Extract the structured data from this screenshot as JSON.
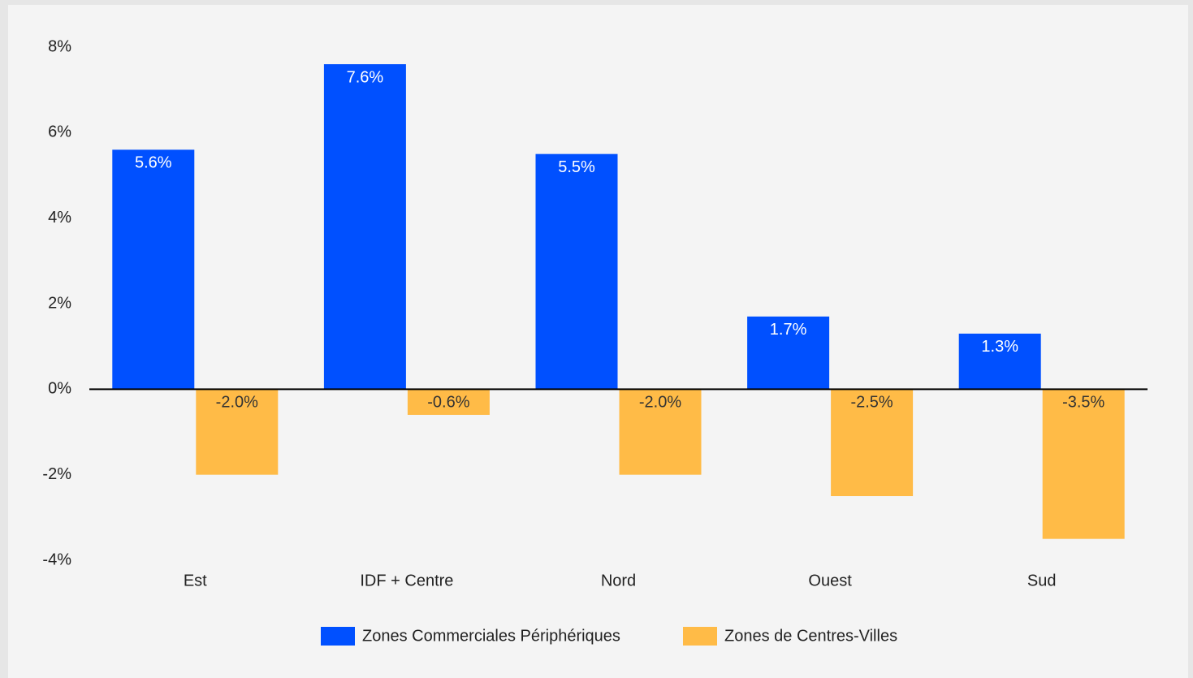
{
  "chart_data": {
    "type": "bar",
    "categories": [
      "Est",
      "IDF + Centre",
      "Nord",
      "Ouest",
      "Sud"
    ],
    "series": [
      {
        "name": "Zones Commerciales Périphériques",
        "color": "#0050ff",
        "values": [
          5.6,
          7.6,
          5.5,
          1.7,
          1.3
        ],
        "value_labels": [
          "5.6%",
          "7.6%",
          "5.5%",
          "1.7%",
          "1.3%"
        ]
      },
      {
        "name": "Zones de Centres-Villes",
        "color": "#ffbb47",
        "values": [
          -2.0,
          -0.6,
          -2.0,
          -2.5,
          -3.5
        ],
        "value_labels": [
          "-2.0%",
          "-0.6%",
          "-2.0%",
          "-2.5%",
          "-3.5%"
        ]
      }
    ],
    "ylim": [
      -4,
      8
    ],
    "yticks": [
      {
        "value": -4,
        "label": "-4%"
      },
      {
        "value": -2,
        "label": "-2%"
      },
      {
        "value": 0,
        "label": "0%"
      },
      {
        "value": 2,
        "label": "2%"
      },
      {
        "value": 4,
        "label": "4%"
      },
      {
        "value": 6,
        "label": "6%"
      },
      {
        "value": 8,
        "label": "8%"
      }
    ],
    "grid": false,
    "legend": "bottom"
  }
}
